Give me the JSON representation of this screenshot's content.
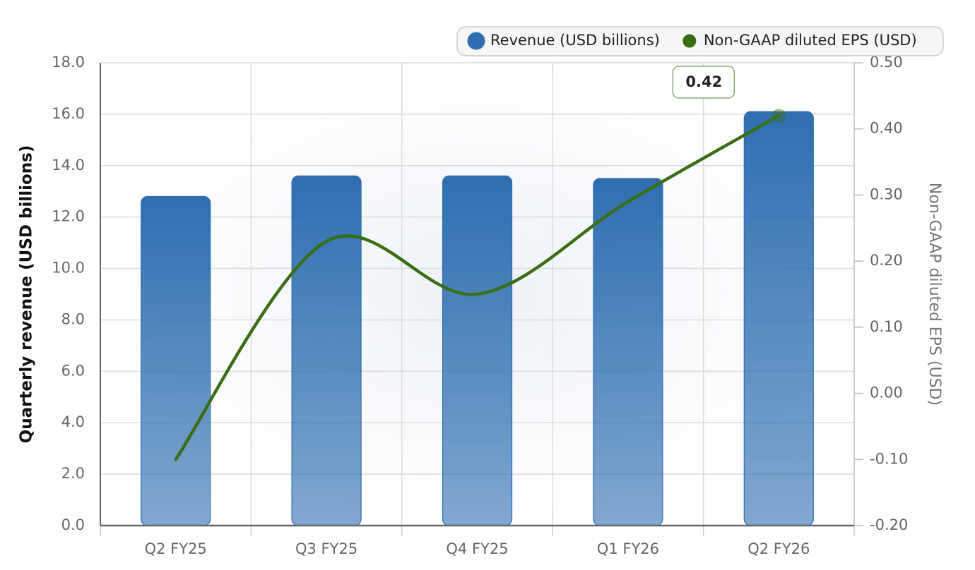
{
  "chart_data": {
    "type": "bar",
    "categories": [
      "Q2 FY25",
      "Q3 FY25",
      "Q4 FY25",
      "Q1 FY26",
      "Q2 FY26"
    ],
    "series": [
      {
        "name": "Revenue (USD billions)",
        "color": "#2f6eb0",
        "type": "bar",
        "values": [
          12.8,
          13.6,
          13.6,
          13.5,
          16.1
        ]
      },
      {
        "name": "Non-GAAP diluted EPS (USD)",
        "color": "#3a6e14",
        "type": "line",
        "axis": "y2",
        "values": [
          -0.1,
          0.23,
          0.15,
          0.29,
          0.42
        ],
        "value_labels": [
          null,
          null,
          null,
          null,
          "0.42"
        ]
      }
    ],
    "ylabel": "Quarterly revenue (USD billions)",
    "y2label": "Non-GAAP diluted EPS (USD)",
    "ylim": [
      0,
      18
    ],
    "yticks": [
      {
        "value": 0,
        "label": "0.0"
      },
      {
        "value": 2,
        "label": "2.0"
      },
      {
        "value": 4,
        "label": "4.0"
      },
      {
        "value": 6,
        "label": "6.0"
      },
      {
        "value": 8,
        "label": "8.0"
      },
      {
        "value": 10,
        "label": "10.0"
      },
      {
        "value": 12,
        "label": "12.0"
      },
      {
        "value": 14,
        "label": "14.0"
      },
      {
        "value": 16,
        "label": "16.0"
      },
      {
        "value": 18,
        "label": "18.0"
      }
    ],
    "y2lim": [
      -0.2,
      0.5
    ],
    "y2ticks": [
      {
        "value": -0.2,
        "label": "-0.20"
      },
      {
        "value": -0.1,
        "label": "-0.10"
      },
      {
        "value": 0,
        "label": "0.00"
      },
      {
        "value": 0.1,
        "label": "0.10"
      },
      {
        "value": 0.2,
        "label": "0.20"
      },
      {
        "value": 0.3,
        "label": "0.30"
      },
      {
        "value": 0.4,
        "label": "0.40"
      },
      {
        "value": 0.5,
        "label": "0.50"
      }
    ],
    "grid": true,
    "legend": "top-right"
  }
}
